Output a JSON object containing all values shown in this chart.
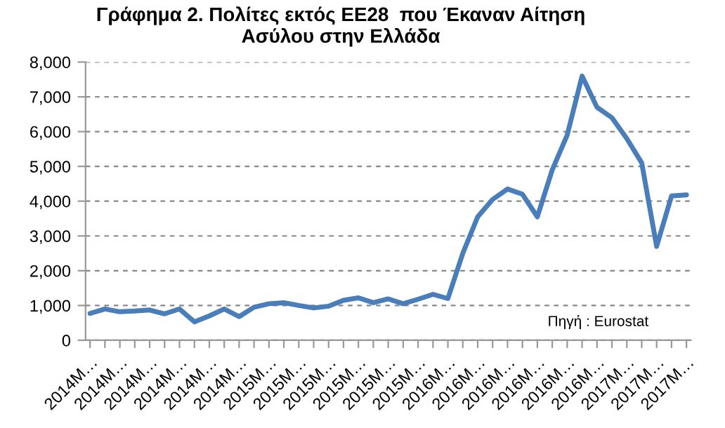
{
  "chart_data": {
    "type": "line",
    "title": "Γράφημα 2. Πολίτες εκτός ΕΕ28  που Έκαναν Αίτηση\nΑσύλου στην Ελλάδα",
    "categories": [
      "2014M…",
      null,
      "2014M…",
      null,
      "2014M…",
      null,
      "2014M…",
      null,
      "2014M…",
      null,
      "2014M…",
      null,
      "2015M…",
      null,
      "2015M…",
      null,
      "2015M…",
      null,
      "2015M…",
      null,
      "2015M…",
      null,
      "2015M…",
      null,
      "2016M…",
      null,
      "2016M…",
      null,
      "2016M…",
      null,
      "2016M…",
      null,
      "2016M…",
      null,
      "2016M…",
      null,
      "2017M…",
      null,
      "2017M…",
      null,
      "2017M…"
    ],
    "series": [
      {
        "color": "#4a7ebb",
        "values": [
          770,
          900,
          820,
          840,
          870,
          760,
          900,
          530,
          700,
          900,
          680,
          950,
          1050,
          1080,
          1000,
          930,
          980,
          1150,
          1220,
          1080,
          1190,
          1050,
          1180,
          1320,
          1200,
          2500,
          3550,
          4050,
          4350,
          4200,
          3550,
          4900,
          5900,
          7600,
          6700,
          6400,
          5800,
          5100,
          2700,
          4150,
          4180
        ]
      }
    ],
    "ylim": [
      0,
      8000
    ],
    "yticks": [
      {
        "value": 0,
        "label": "0"
      },
      {
        "value": 1000,
        "label": "1,000"
      },
      {
        "value": 2000,
        "label": "2,000"
      },
      {
        "value": 3000,
        "label": "3,000"
      },
      {
        "value": 4000,
        "label": "4,000"
      },
      {
        "value": 5000,
        "label": "5,000"
      },
      {
        "value": 6000,
        "label": "6,000"
      },
      {
        "value": 7000,
        "label": "7,000"
      },
      {
        "value": 8000,
        "label": "8,000"
      }
    ],
    "grid": "y",
    "legend": false,
    "marker": "none",
    "line_style": "solid",
    "annotations": [
      "Πηγή : Eurostat"
    ]
  }
}
